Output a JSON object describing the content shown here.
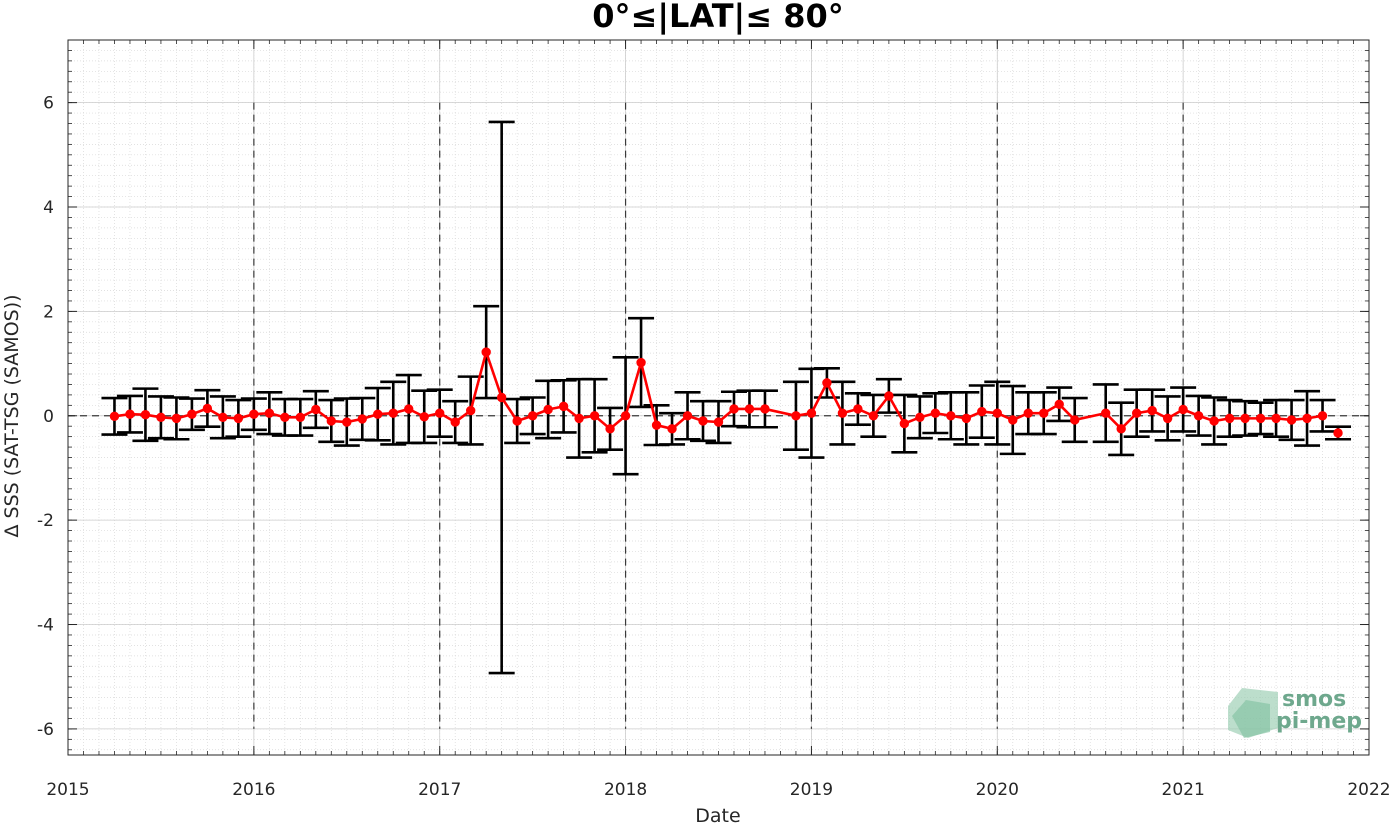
{
  "chart_data": {
    "type": "line",
    "title": "0°≤|LAT|≤ 80°",
    "xlabel": "Date",
    "ylabel": "Δ SSS (SAT-TSG (SAMOS))",
    "xlim": [
      2015,
      2022
    ],
    "ylim": [
      -6.5,
      7.2
    ],
    "x_ticks": [
      "2015",
      "2016",
      "2017",
      "2018",
      "2019",
      "2020",
      "2021",
      "2022"
    ],
    "y_ticks": [
      "-6",
      "-4",
      "-2",
      "0",
      "2",
      "4",
      "6"
    ],
    "grid": true,
    "minor_grid": true,
    "year_dashed_lines": true,
    "zero_reference_line": true,
    "line_color": "#ff0000",
    "errorbar_color": "#000000",
    "series": [
      {
        "x": [
          "2015-04",
          "2015-05",
          "2015-06",
          "2015-07",
          "2015-08",
          "2015-09",
          "2015-10",
          "2015-11",
          "2015-12",
          "2016-01",
          "2016-02",
          "2016-03",
          "2016-04",
          "2016-05",
          "2016-06",
          "2016-07",
          "2016-08",
          "2016-09",
          "2016-10",
          "2016-11",
          "2016-12",
          "2017-01",
          "2017-02",
          "2017-03",
          "2017-04",
          "2017-05",
          "2017-06",
          "2017-07",
          "2017-08",
          "2017-09",
          "2017-10",
          "2017-11",
          "2017-12",
          "2018-01",
          "2018-02",
          "2018-03",
          "2018-04",
          "2018-05",
          "2018-06",
          "2018-07",
          "2018-08",
          "2018-09",
          "2018-10",
          "2018-12",
          "2019-01",
          "2019-02",
          "2019-03",
          "2019-04",
          "2019-05",
          "2019-06",
          "2019-07",
          "2019-08",
          "2019-09",
          "2019-10",
          "2019-11",
          "2019-12",
          "2020-01",
          "2020-02",
          "2020-03",
          "2020-04",
          "2020-05",
          "2020-06",
          "2020-08",
          "2020-09",
          "2020-10",
          "2020-11",
          "2020-12",
          "2021-01",
          "2021-02",
          "2021-03",
          "2021-04",
          "2021-05",
          "2021-06",
          "2021-07",
          "2021-08",
          "2021-09",
          "2021-10"
        ],
        "values": [
          -0.01,
          0.03,
          0.02,
          -0.03,
          -0.05,
          0.03,
          0.14,
          -0.03,
          -0.05,
          0.03,
          0.05,
          -0.03,
          -0.03,
          0.12,
          -0.1,
          -0.12,
          -0.06,
          0.03,
          0.05,
          0.13,
          -0.02,
          0.05,
          -0.12,
          0.1,
          1.22,
          0.35,
          -0.1,
          0.0,
          0.12,
          0.18,
          -0.05,
          0.0,
          -0.25,
          0.0,
          1.02,
          -0.18,
          -0.25,
          0.0,
          -0.1,
          -0.12,
          0.13,
          0.13,
          0.13,
          0.0,
          0.05,
          0.63,
          0.05,
          0.13,
          0.0,
          0.38,
          -0.15,
          -0.03,
          0.05,
          0.0,
          -0.05,
          0.08,
          0.05,
          -0.08,
          0.05,
          0.05,
          0.22,
          -0.08,
          0.05,
          -0.25,
          0.05,
          0.1,
          -0.05,
          0.12,
          0.0,
          -0.1,
          -0.05,
          -0.05,
          -0.05,
          -0.05,
          -0.08,
          -0.05,
          0.0
        ],
        "errors": [
          0.35,
          0.35,
          0.5,
          0.4,
          0.4,
          0.3,
          0.35,
          0.4,
          0.35,
          0.3,
          0.4,
          0.35,
          0.35,
          0.35,
          0.4,
          0.45,
          0.4,
          0.5,
          0.6,
          0.65,
          0.5,
          0.45,
          0.4,
          0.65,
          0.88,
          5.28,
          0.42,
          0.35,
          0.55,
          0.5,
          0.75,
          0.7,
          0.4,
          1.12,
          0.85,
          0.38,
          0.3,
          0.45,
          0.38,
          0.4,
          0.33,
          0.35,
          0.35,
          0.65,
          0.85,
          0.28,
          0.6,
          0.3,
          0.4,
          0.32,
          0.55,
          0.4,
          0.38,
          0.45,
          0.5,
          0.5,
          0.6,
          0.65,
          0.4,
          0.4,
          0.32,
          0.42,
          0.55,
          0.5,
          0.45,
          0.4,
          0.42,
          0.42,
          0.38,
          0.45,
          0.35,
          0.33,
          0.3,
          0.35,
          0.38,
          0.52,
          0.3
        ]
      },
      {
        "x": [
          "2021-11"
        ],
        "values": [
          -0.33
        ],
        "errors": [
          0.12
        ]
      }
    ]
  },
  "logo": {
    "line1": "smos",
    "line2": "pi-mep"
  }
}
